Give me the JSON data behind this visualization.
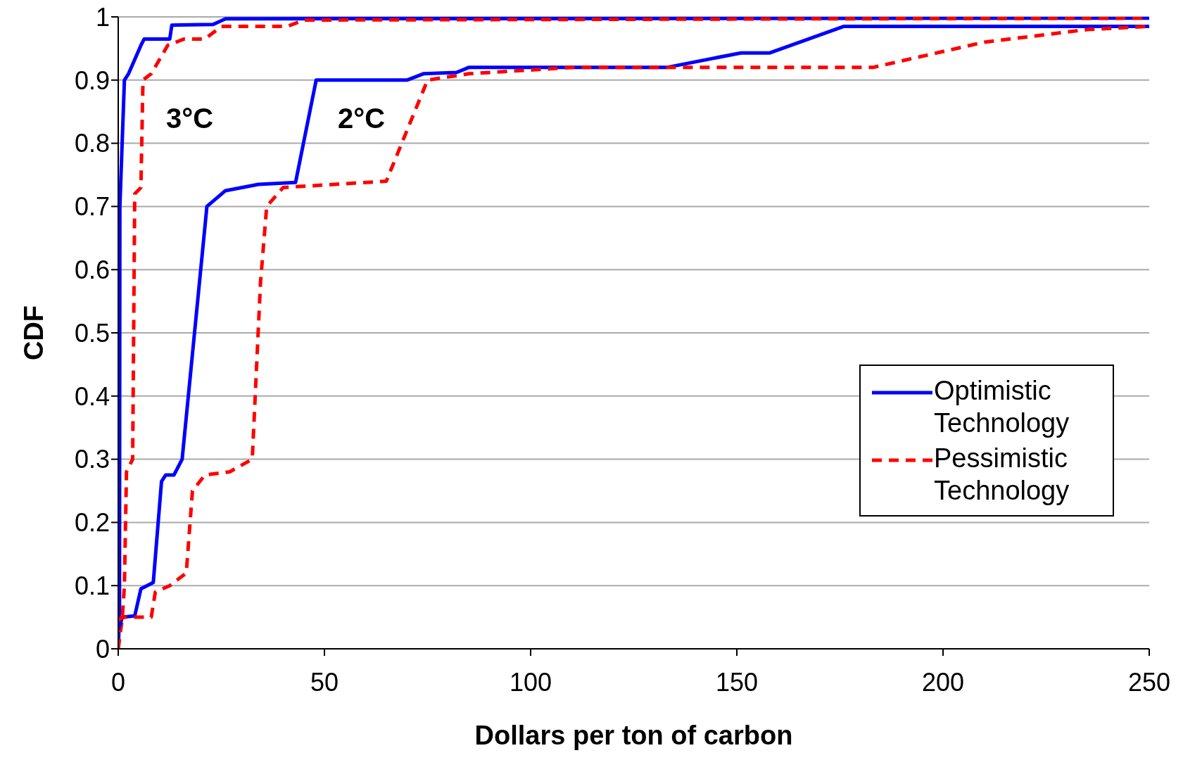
{
  "chart_data": {
    "type": "line",
    "xlabel": "Dollars per ton of carbon",
    "ylabel": "CDF",
    "xlim": [
      0,
      250
    ],
    "xticks": [
      0,
      50,
      100,
      150,
      200,
      250
    ],
    "ylim": [
      0,
      1
    ],
    "yticks": [
      0,
      0.1,
      0.2,
      0.3,
      0.4,
      0.5,
      0.6,
      0.7,
      0.8,
      0.9,
      1
    ],
    "grid": "y",
    "legend": "bottom right",
    "marker": "none",
    "annotations": [
      "3°C",
      "2°C"
    ],
    "series": [
      {
        "name": "Optimistic Technology",
        "color": "#0000ff",
        "line_style": "solid",
        "x": [
          0,
          0.3,
          0.4,
          1.5,
          2.5,
          5.5,
          6.3,
          12.5,
          13,
          23,
          26,
          250
        ],
        "values": [
          0,
          0.05,
          0.7,
          0.9,
          0.91,
          0.955,
          0.965,
          0.965,
          0.987,
          0.988,
          0.997,
          0.998
        ]
      },
      {
        "name": "Pessimistic Technology",
        "color": "#ff0000",
        "line_style": "dashed",
        "x": [
          0,
          1,
          1.5,
          2,
          3.5,
          4,
          5.5,
          6,
          8,
          12,
          16,
          21,
          25,
          41,
          45,
          250
        ],
        "values": [
          0,
          0.05,
          0.1,
          0.28,
          0.3,
          0.72,
          0.73,
          0.9,
          0.91,
          0.955,
          0.965,
          0.965,
          0.985,
          0.985,
          0.995,
          0.998
        ]
      },
      {
        "color": "#0000ff",
        "line_style": "solid",
        "x": [
          0,
          1,
          4,
          5.5,
          8.5,
          10.5,
          11.5,
          13.5,
          15.5,
          21.5,
          26,
          34,
          43,
          48,
          70,
          74,
          82,
          85,
          133,
          151,
          158,
          176,
          250
        ],
        "values": [
          0.03,
          0.05,
          0.052,
          0.095,
          0.105,
          0.265,
          0.275,
          0.275,
          0.3,
          0.7,
          0.725,
          0.735,
          0.738,
          0.9,
          0.9,
          0.91,
          0.912,
          0.92,
          0.92,
          0.943,
          0.943,
          0.985,
          0.985
        ]
      },
      {
        "color": "#ff0000",
        "line_style": "dashed",
        "x": [
          0,
          1,
          8,
          9,
          12.5,
          16.5,
          18,
          21,
          27,
          32.5,
          34.5,
          36,
          40,
          65,
          75,
          85,
          110,
          183,
          210,
          235,
          250
        ],
        "values": [
          0.045,
          0.05,
          0.05,
          0.09,
          0.1,
          0.12,
          0.25,
          0.275,
          0.28,
          0.3,
          0.58,
          0.7,
          0.73,
          0.74,
          0.9,
          0.91,
          0.92,
          0.92,
          0.96,
          0.98,
          0.985
        ]
      }
    ]
  }
}
